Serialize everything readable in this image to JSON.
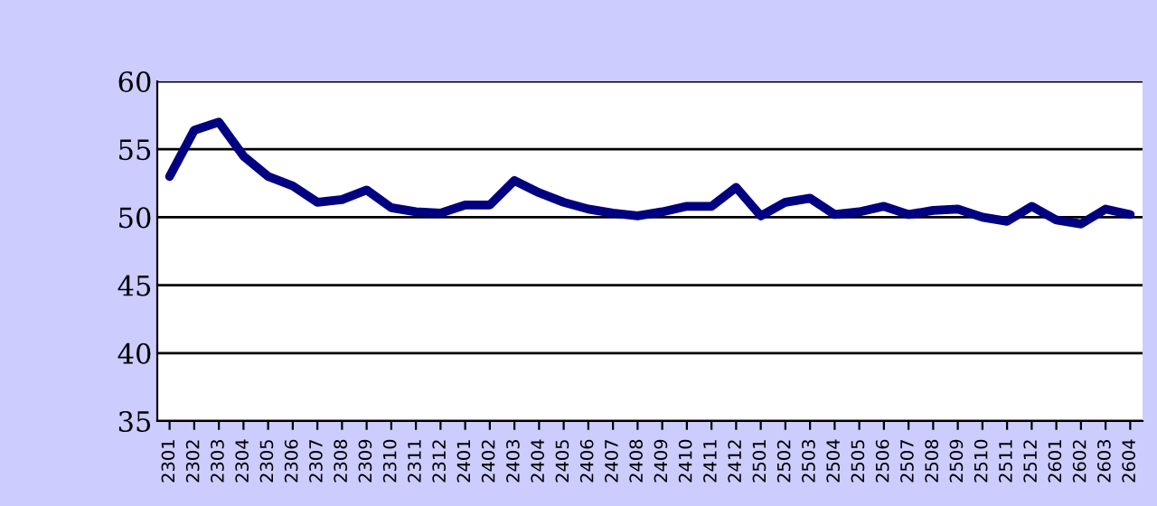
{
  "chart_data": {
    "type": "line",
    "categories": [
      "2301",
      "2302",
      "2303",
      "2304",
      "2305",
      "2306",
      "2307",
      "2308",
      "2309",
      "2310",
      "2311",
      "2312",
      "2401",
      "2402",
      "2403",
      "2404",
      "2405",
      "2406",
      "2407",
      "2408",
      "2409",
      "2410",
      "2411",
      "2412",
      "2501",
      "2502",
      "2503",
      "2504",
      "2505",
      "2506",
      "2507",
      "2508",
      "2509",
      "2510",
      "2511",
      "2512",
      "2601",
      "2602",
      "2603",
      "2604"
    ],
    "series": [
      {
        "color": "#000080",
        "values": [
          53.0,
          56.4,
          57.0,
          54.5,
          53.0,
          52.3,
          51.1,
          51.3,
          52.0,
          50.7,
          50.4,
          50.3,
          50.9,
          50.9,
          52.7,
          51.8,
          51.1,
          50.6,
          50.3,
          50.1,
          50.4,
          50.8,
          50.8,
          52.2,
          50.1,
          51.1,
          51.4,
          50.2,
          50.4,
          50.8,
          50.2,
          50.5,
          50.6,
          50.0,
          49.7,
          50.8,
          49.8,
          49.5,
          50.6,
          50.2
        ]
      }
    ],
    "ylim": [
      35,
      60
    ],
    "yticks": [
      35,
      40,
      45,
      50,
      55,
      60
    ],
    "grid": "y",
    "marker": "none",
    "line_style": "solid"
  }
}
